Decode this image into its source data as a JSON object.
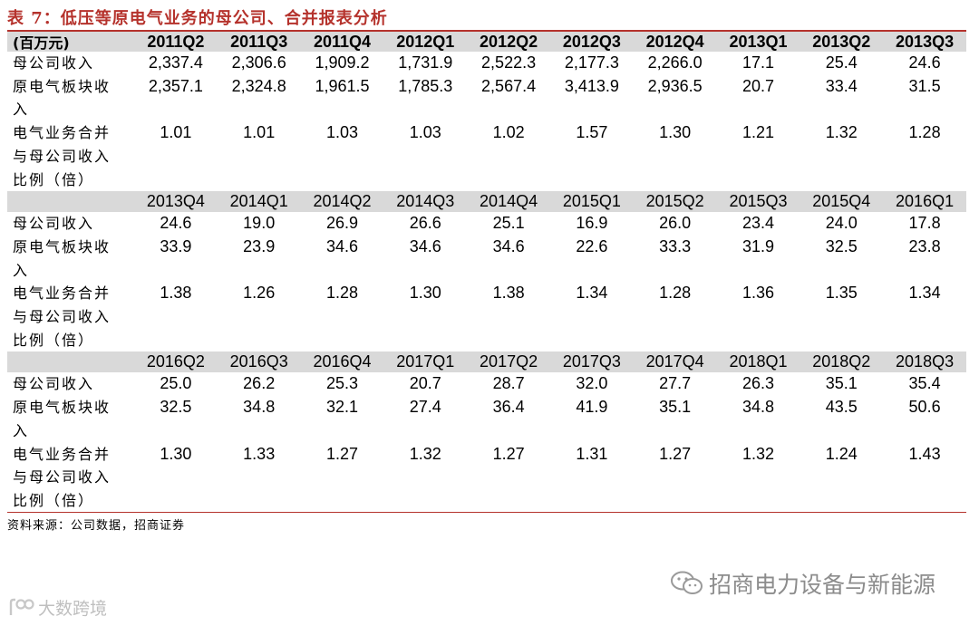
{
  "title": "表 7：低压等原电气业务的母公司、合并报表分析",
  "unit_label": "(百万元)",
  "row_labels": {
    "parent_revenue": [
      "母公司收入"
    ],
    "segment_revenue": [
      "原电气板块收",
      "入"
    ],
    "ratio": [
      "电气业务合并",
      "与母公司收入",
      "比例（倍）"
    ]
  },
  "blocks": [
    {
      "periods": [
        "2011Q2",
        "2011Q3",
        "2011Q4",
        "2012Q1",
        "2012Q2",
        "2012Q3",
        "2012Q4",
        "2013Q1",
        "2013Q2",
        "2013Q3"
      ],
      "parent_revenue": [
        "2,337.4",
        "2,306.6",
        "1,909.2",
        "1,731.9",
        "2,522.3",
        "2,177.3",
        "2,266.0",
        "17.1",
        "25.4",
        "24.6"
      ],
      "segment_revenue": [
        "2,357.1",
        "2,324.8",
        "1,961.5",
        "1,785.3",
        "2,567.4",
        "3,413.9",
        "2,936.5",
        "20.7",
        "33.4",
        "31.5"
      ],
      "ratio": [
        "1.01",
        "1.01",
        "1.03",
        "1.03",
        "1.02",
        "1.57",
        "1.30",
        "1.21",
        "1.32",
        "1.28"
      ]
    },
    {
      "periods": [
        "2013Q4",
        "2014Q1",
        "2014Q2",
        "2014Q3",
        "2014Q4",
        "2015Q1",
        "2015Q2",
        "2015Q3",
        "2015Q4",
        "2016Q1"
      ],
      "parent_revenue": [
        "24.6",
        "19.0",
        "26.9",
        "26.6",
        "25.1",
        "16.9",
        "26.0",
        "23.4",
        "24.0",
        "17.8"
      ],
      "segment_revenue": [
        "33.9",
        "23.9",
        "34.6",
        "34.6",
        "34.6",
        "22.6",
        "33.3",
        "31.9",
        "32.5",
        "23.8"
      ],
      "ratio": [
        "1.38",
        "1.26",
        "1.28",
        "1.30",
        "1.38",
        "1.34",
        "1.28",
        "1.36",
        "1.35",
        "1.34"
      ]
    },
    {
      "periods": [
        "2016Q2",
        "2016Q3",
        "2016Q4",
        "2017Q1",
        "2017Q2",
        "2017Q3",
        "2017Q4",
        "2018Q1",
        "2018Q2",
        "2018Q3"
      ],
      "parent_revenue": [
        "25.0",
        "26.2",
        "25.3",
        "20.7",
        "28.7",
        "32.0",
        "27.7",
        "26.3",
        "35.1",
        "35.4"
      ],
      "segment_revenue": [
        "32.5",
        "34.8",
        "32.1",
        "27.4",
        "36.4",
        "41.9",
        "35.1",
        "34.8",
        "43.5",
        "50.6"
      ],
      "ratio": [
        "1.30",
        "1.33",
        "1.27",
        "1.32",
        "1.27",
        "1.31",
        "1.27",
        "1.32",
        "1.24",
        "1.43"
      ]
    }
  ],
  "source": "资料来源：公司数据，招商证券",
  "brand": {
    "icon": "wechat-icon",
    "text": "招商电力设备与新能源"
  },
  "watermark": {
    "icon": "bigdata-logo-icon",
    "text": "大数跨境"
  }
}
